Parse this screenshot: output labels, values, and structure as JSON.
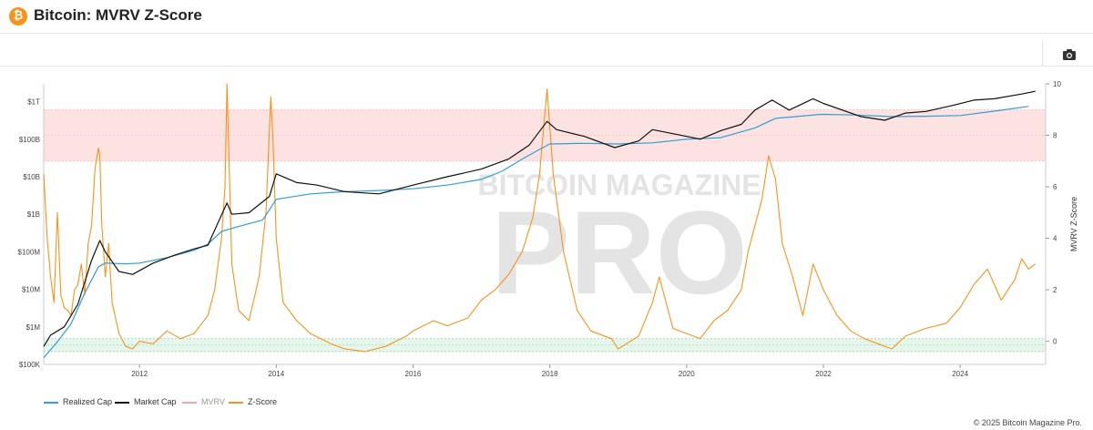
{
  "header": {
    "title": "Bitcoin: MVRV Z-Score",
    "icon_glyph": "₿",
    "icon": "bitcoin-icon",
    "camera_icon": "camera-icon"
  },
  "colors": {
    "realized_cap": "#2e9fd8",
    "market_cap": "#111111",
    "mvrv_band": "#f7a8a8",
    "zscore": "#f7931a",
    "green_band": "#9be5b5"
  },
  "watermark": {
    "top": "BITCOIN MAGAZINE",
    "main": "PRO"
  },
  "copyright": "© 2025 Bitcoin Magazine Pro.",
  "chart_data": {
    "type": "line",
    "title": "Bitcoin: MVRV Z-Score",
    "xlabel": "",
    "ylabel_left": "",
    "ylabel_right": "MVRV Z-Score",
    "x_ticks": [
      "2012",
      "2014",
      "2016",
      "2018",
      "2020",
      "2022",
      "2024"
    ],
    "y_left_scale": "log",
    "y_left_ticks": [
      "$100K",
      "$1M",
      "$10M",
      "$100M",
      "$1B",
      "$10B",
      "$100B",
      "$1T"
    ],
    "y_left_range": [
      100000,
      3000000000000
    ],
    "y_right_ticks": [
      "0",
      "2",
      "4",
      "6",
      "8",
      "10"
    ],
    "y_right_range": [
      -0.9,
      10
    ],
    "x_range": [
      2010.6,
      2025.25
    ],
    "bands": [
      {
        "name": "MVRV",
        "axis": "right",
        "from": 7,
        "to": 9,
        "color": "#fde2e2"
      },
      {
        "name": "green",
        "axis": "right",
        "from": -0.4,
        "to": 0.1,
        "color": "#e6f6ec"
      }
    ],
    "grid": false,
    "legend_position": "bottom-left",
    "series": [
      {
        "name": "Realized Cap",
        "axis": "left",
        "x": [
          2010.6,
          2010.8,
          2011.0,
          2011.2,
          2011.4,
          2011.5,
          2011.8,
          2012.0,
          2012.4,
          2012.8,
          2013.0,
          2013.2,
          2013.5,
          2013.8,
          2014.0,
          2014.5,
          2015.0,
          2015.5,
          2016.0,
          2016.5,
          2017.0,
          2017.3,
          2017.6,
          2017.9,
          2018.0,
          2018.5,
          2019.0,
          2019.5,
          2020.0,
          2020.5,
          2021.0,
          2021.3,
          2021.6,
          2021.9,
          2022.0,
          2022.5,
          2023.0,
          2023.5,
          2024.0,
          2024.5,
          2025.0
        ],
        "values": [
          150000,
          400000,
          1200000,
          8000000,
          40000000,
          50000000,
          48000000,
          50000000,
          70000000,
          110000000,
          160000000,
          350000000,
          500000000,
          700000000,
          2500000000,
          3500000000,
          4000000000,
          4300000000,
          4800000000,
          6000000000,
          8500000000,
          14000000000,
          30000000000,
          60000000000,
          75000000000,
          78000000000,
          75000000000,
          80000000000,
          100000000000,
          110000000000,
          200000000000,
          360000000000,
          400000000000,
          450000000000,
          460000000000,
          440000000000,
          400000000000,
          410000000000,
          430000000000,
          560000000000,
          750000000000
        ]
      },
      {
        "name": "Market Cap",
        "axis": "left",
        "x": [
          2010.6,
          2010.7,
          2010.9,
          2011.1,
          2011.3,
          2011.42,
          2011.5,
          2011.7,
          2011.9,
          2012.2,
          2012.5,
          2012.8,
          2013.0,
          2013.28,
          2013.35,
          2013.6,
          2013.9,
          2014.0,
          2014.3,
          2014.6,
          2015.0,
          2015.5,
          2016.0,
          2016.5,
          2017.0,
          2017.4,
          2017.7,
          2017.96,
          2018.1,
          2018.5,
          2018.95,
          2019.3,
          2019.5,
          2019.9,
          2020.2,
          2020.5,
          2020.8,
          2021.0,
          2021.25,
          2021.5,
          2021.85,
          2022.0,
          2022.4,
          2022.55,
          2022.9,
          2023.2,
          2023.5,
          2023.9,
          2024.2,
          2024.5,
          2024.9,
          2025.1
        ],
        "values": [
          300000,
          600000,
          1000000,
          4000000,
          60000000,
          200000000,
          100000000,
          30000000,
          25000000,
          50000000,
          80000000,
          120000000,
          150000000,
          2000000000,
          1000000000,
          1100000000,
          3000000000,
          12000000000,
          7000000000,
          6000000000,
          4000000000,
          3500000000,
          6000000000,
          10000000000,
          16000000000,
          30000000000,
          70000000000,
          300000000000,
          180000000000,
          120000000000,
          60000000000,
          90000000000,
          180000000000,
          130000000000,
          100000000000,
          170000000000,
          250000000000,
          600000000000,
          1100000000000,
          600000000000,
          1200000000000,
          900000000000,
          500000000000,
          400000000000,
          320000000000,
          500000000000,
          550000000000,
          800000000000,
          1100000000000,
          1200000000000,
          1600000000000,
          1900000000000
        ]
      },
      {
        "name": "MVRV",
        "axis": "right",
        "x": [],
        "values": []
      },
      {
        "name": "Z-Score",
        "axis": "right",
        "x": [
          2010.6,
          2010.65,
          2010.7,
          2010.75,
          2010.8,
          2010.85,
          2010.9,
          2010.95,
          2011.0,
          2011.05,
          2011.1,
          2011.15,
          2011.2,
          2011.25,
          2011.3,
          2011.35,
          2011.4,
          2011.42,
          2011.45,
          2011.5,
          2011.55,
          2011.6,
          2011.7,
          2011.8,
          2011.9,
          2012.0,
          2012.2,
          2012.4,
          2012.6,
          2012.8,
          2013.0,
          2013.1,
          2013.2,
          2013.25,
          2013.28,
          2013.31,
          2013.35,
          2013.45,
          2013.6,
          2013.75,
          2013.85,
          2013.92,
          2013.95,
          2014.0,
          2014.1,
          2014.3,
          2014.5,
          2014.8,
          2015.0,
          2015.3,
          2015.6,
          2015.9,
          2016.0,
          2016.3,
          2016.5,
          2016.8,
          2017.0,
          2017.2,
          2017.4,
          2017.6,
          2017.75,
          2017.85,
          2017.96,
          2018.05,
          2018.2,
          2018.4,
          2018.6,
          2018.9,
          2019.0,
          2019.3,
          2019.5,
          2019.6,
          2019.8,
          2020.0,
          2020.2,
          2020.4,
          2020.6,
          2020.8,
          2020.9,
          2021.0,
          2021.1,
          2021.2,
          2021.3,
          2021.4,
          2021.55,
          2021.7,
          2021.85,
          2022.0,
          2022.2,
          2022.4,
          2022.6,
          2022.9,
          2023.0,
          2023.2,
          2023.5,
          2023.8,
          2024.0,
          2024.2,
          2024.4,
          2024.6,
          2024.8,
          2024.9,
          2025.0,
          2025.1
        ],
        "values": [
          6.5,
          4.0,
          2.5,
          1.5,
          5.0,
          1.8,
          1.3,
          1.2,
          1.0,
          2.0,
          2.2,
          3.0,
          1.8,
          3.8,
          4.5,
          6.7,
          7.5,
          7.2,
          4.5,
          2.5,
          3.8,
          1.5,
          0.3,
          -0.2,
          -0.3,
          0.0,
          -0.1,
          0.4,
          0.1,
          0.3,
          1.0,
          2.0,
          4.0,
          6.0,
          10.0,
          7.0,
          3.0,
          1.2,
          0.8,
          2.5,
          5.0,
          9.5,
          8.0,
          4.0,
          1.5,
          0.8,
          0.3,
          -0.1,
          -0.3,
          -0.4,
          -0.2,
          0.2,
          0.4,
          0.8,
          0.6,
          0.9,
          1.6,
          2.0,
          2.6,
          3.5,
          4.8,
          6.5,
          9.8,
          6.5,
          3.5,
          1.2,
          0.4,
          0.1,
          -0.3,
          0.2,
          1.5,
          2.5,
          0.5,
          0.3,
          0.1,
          0.8,
          1.2,
          2.0,
          3.5,
          4.5,
          5.5,
          7.2,
          6.3,
          3.8,
          2.5,
          1.0,
          3.0,
          2.0,
          1.0,
          0.4,
          0.1,
          -0.2,
          -0.3,
          0.2,
          0.5,
          0.7,
          1.3,
          2.2,
          2.8,
          1.6,
          2.4,
          3.2,
          2.8,
          3.0
        ]
      }
    ]
  },
  "legend": [
    {
      "label": "Realized Cap",
      "color": "#2e9fd8"
    },
    {
      "label": "Market Cap",
      "color": "#111111"
    },
    {
      "label": "MVRV",
      "color": "#f7a8a8"
    },
    {
      "label": "Z-Score",
      "color": "#f7931a"
    }
  ]
}
